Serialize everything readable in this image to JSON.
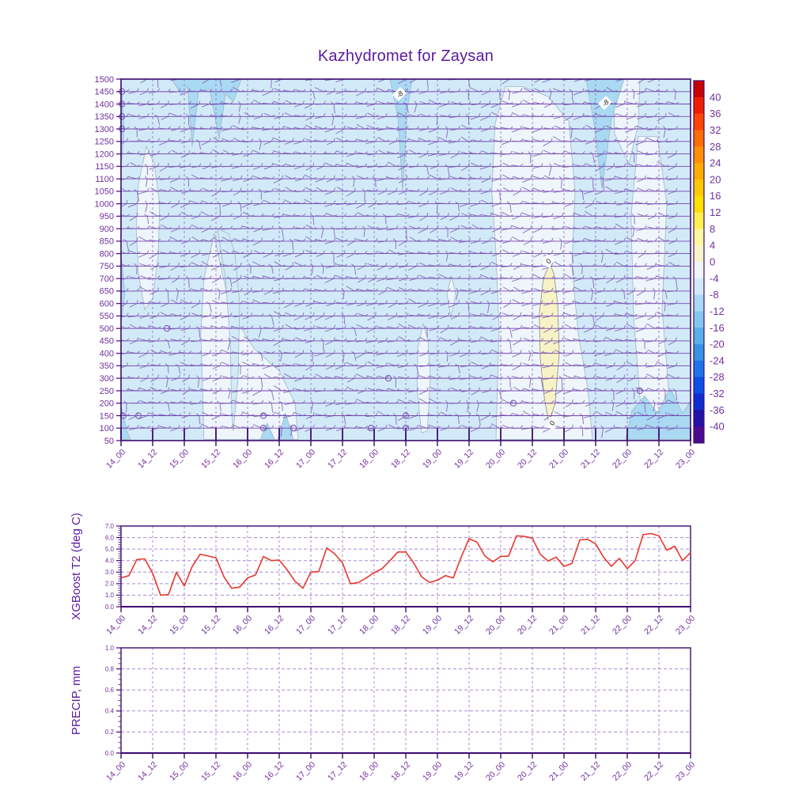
{
  "title": "Kazhydromet for Zaysan",
  "colors": {
    "axis": "#3d0a70",
    "title": "#5a1a9e",
    "label": "#70309f",
    "grid": "#9a76cc",
    "level_line": "#6733a8",
    "barb": "#7c57b4",
    "t2_line": "#e8372c",
    "contour_line": "#9fb6c4",
    "band_base": "#d2eaf8",
    "band_pale": "#eef5fb",
    "band_medium": "#a9d9f3",
    "band_warm": "#f8f3c6"
  },
  "panels": {
    "top": {
      "y_ticks": [
        1500,
        1450,
        1400,
        1350,
        1300,
        1250,
        1200,
        1150,
        1100,
        1050,
        1000,
        950,
        900,
        850,
        800,
        750,
        700,
        650,
        600,
        550,
        500,
        450,
        400,
        350,
        300,
        250,
        200,
        150,
        100,
        50
      ],
      "x_tick_labels": [
        "14_00",
        "14_12",
        "15_00",
        "15_12",
        "16_00",
        "16_12",
        "17_00",
        "17_12",
        "18_00",
        "18_12",
        "19_00",
        "19_12",
        "20_00",
        "20_12",
        "21_00",
        "21_12",
        "22_00",
        "22_12",
        "23_00"
      ],
      "colorbar": {
        "tick_labels": [
          "40",
          "36",
          "32",
          "28",
          "24",
          "20",
          "16",
          "12",
          "8",
          "4",
          "0",
          "-4",
          "-8",
          "-12",
          "-16",
          "-20",
          "-24",
          "-28",
          "-32",
          "-36",
          "-40"
        ],
        "colors": [
          "#c80000",
          "#f01e00",
          "#ff4600",
          "#ff6e00",
          "#ff9000",
          "#ffae00",
          "#ffc800",
          "#ffde00",
          "#fff04e",
          "#fff7a0",
          "#f9f4c8",
          "#eef5fb",
          "#d2eaf8",
          "#a9d9f3",
          "#84c7ee",
          "#58b0e8",
          "#3694e2",
          "#1d74e8",
          "#0c50e6",
          "#0d2dcf",
          "#2310a6",
          "#4b0b8c"
        ]
      },
      "contour_text_labels": [
        {
          "text": "-8",
          "t": 8.8,
          "level": 1440,
          "rot": -45
        },
        {
          "text": "-8",
          "t": 15.3,
          "level": 1405,
          "rot": -45
        },
        {
          "text": "0",
          "t": 13.5,
          "level": 770,
          "rot": -65
        },
        {
          "text": "0",
          "t": 13.62,
          "level": 120,
          "rot": -75
        }
      ],
      "fill_regions": [
        {
          "band": "-4..0",
          "color": "#eef5fb",
          "points": [
            [
              0.8,
              1230
            ],
            [
              0.55,
              1080
            ],
            [
              0.48,
              900
            ],
            [
              0.55,
              720
            ],
            [
              0.75,
              575
            ],
            [
              1.0,
              620
            ],
            [
              1.18,
              800
            ],
            [
              1.22,
              1000
            ],
            [
              1.05,
              1160
            ]
          ]
        },
        {
          "band": "-4..0",
          "color": "#eef5fb",
          "points": [
            [
              2.95,
              880
            ],
            [
              2.62,
              700
            ],
            [
              2.52,
              480
            ],
            [
              2.58,
              240
            ],
            [
              2.62,
              55
            ],
            [
              5.6,
              55
            ],
            [
              5.5,
              200
            ],
            [
              5.0,
              330
            ],
            [
              4.2,
              420
            ],
            [
              3.5,
              560
            ],
            [
              3.2,
              720
            ],
            [
              3.0,
              840
            ]
          ]
        },
        {
          "band": "-8..-4",
          "color": "#d2eaf8",
          "points": [
            [
              3.05,
              900
            ],
            [
              3.3,
              700
            ],
            [
              3.45,
              450
            ],
            [
              3.5,
              150
            ],
            [
              3.55,
              90
            ],
            [
              3.7,
              300
            ],
            [
              3.75,
              600
            ],
            [
              3.6,
              800
            ],
            [
              3.4,
              880
            ]
          ]
        },
        {
          "band": "-4..0",
          "color": "#eef5fb",
          "points": [
            [
              10.45,
              710
            ],
            [
              10.3,
              640
            ],
            [
              10.42,
              545
            ],
            [
              10.58,
              635
            ]
          ]
        },
        {
          "band": "-4..0",
          "color": "#eef5fb",
          "points": [
            [
              9.55,
              520
            ],
            [
              9.38,
              420
            ],
            [
              9.36,
              250
            ],
            [
              9.5,
              80
            ],
            [
              9.68,
              90
            ],
            [
              9.78,
              300
            ],
            [
              9.7,
              450
            ]
          ]
        },
        {
          "band": "-4..0",
          "color": "#eef5fb",
          "points": [
            [
              12.15,
              1470
            ],
            [
              11.82,
              1320
            ],
            [
              11.72,
              1050
            ],
            [
              11.85,
              800
            ],
            [
              11.95,
              500
            ],
            [
              11.85,
              55
            ],
            [
              14.9,
              55
            ],
            [
              14.75,
              260
            ],
            [
              14.45,
              480
            ],
            [
              14.25,
              750
            ],
            [
              14.35,
              1050
            ],
            [
              14.15,
              1330
            ],
            [
              13.5,
              1430
            ],
            [
              12.7,
              1470
            ]
          ]
        },
        {
          "band": "-4..0",
          "color": "#eef5fb",
          "points": [
            [
              16.35,
              1270
            ],
            [
              16.12,
              950
            ],
            [
              16.2,
              550
            ],
            [
              16.45,
              140
            ],
            [
              17.35,
              190
            ],
            [
              17.1,
              580
            ],
            [
              17.25,
              1000
            ],
            [
              16.95,
              1270
            ]
          ]
        },
        {
          "band": "-4..0",
          "color": "#eef5fb",
          "points": [
            [
              15.55,
              1500
            ],
            [
              15.6,
              1280
            ],
            [
              16.05,
              1160
            ],
            [
              16.35,
              1320
            ],
            [
              16.4,
              1500
            ]
          ]
        },
        {
          "band": "-12..-8",
          "color": "#a9d9f3",
          "points": [
            [
              1.6,
              1500
            ],
            [
              1.9,
              1440
            ],
            [
              2.1,
              1470
            ],
            [
              2.25,
              1230
            ],
            [
              2.45,
              1450
            ],
            [
              2.8,
              1460
            ],
            [
              3.1,
              1260
            ],
            [
              3.3,
              1440
            ],
            [
              3.55,
              1410
            ],
            [
              3.8,
              1500
            ]
          ]
        },
        {
          "band": "-12..-8",
          "color": "#a9d9f3",
          "points": [
            [
              8.5,
              1500
            ],
            [
              8.75,
              1350
            ],
            [
              8.9,
              1050
            ],
            [
              9.05,
              1380
            ],
            [
              9.2,
              1500
            ]
          ]
        },
        {
          "band": "-12..-8",
          "color": "#a9d9f3",
          "points": [
            [
              14.7,
              1500
            ],
            [
              14.95,
              1320
            ],
            [
              15.2,
              1060
            ],
            [
              15.5,
              1340
            ],
            [
              15.9,
              1500
            ]
          ]
        },
        {
          "band": "-12..-8",
          "color": "#a9d9f3",
          "points": [
            [
              0,
              1500
            ],
            [
              0.1,
              1300
            ],
            [
              0,
              1150
            ]
          ]
        },
        {
          "band": "-12..-8",
          "color": "#a9d9f3",
          "points": [
            [
              0,
              800
            ],
            [
              0.12,
              640
            ],
            [
              0,
              520
            ]
          ]
        },
        {
          "band": "-12..-8",
          "color": "#a9d9f3",
          "points": [
            [
              0,
              190
            ],
            [
              0.18,
              90
            ],
            [
              0.3,
              55
            ],
            [
              0,
              55
            ]
          ]
        },
        {
          "band": "-12..-8",
          "color": "#a9d9f3",
          "points": [
            [
              4.4,
              55
            ],
            [
              4.62,
              120
            ],
            [
              4.85,
              55
            ]
          ]
        },
        {
          "band": "-12..-8",
          "color": "#a9d9f3",
          "points": [
            [
              4.95,
              55
            ],
            [
              5.2,
              160
            ],
            [
              5.45,
              55
            ]
          ]
        },
        {
          "band": "-12..-8",
          "color": "#a9d9f3",
          "points": [
            [
              15.95,
              55
            ],
            [
              16.15,
              170
            ],
            [
              16.55,
              230
            ],
            [
              16.95,
              160
            ],
            [
              17.35,
              260
            ],
            [
              17.75,
              160
            ],
            [
              18,
              210
            ],
            [
              18,
              55
            ]
          ]
        },
        {
          "band": "0..4",
          "color": "#f8f3c6",
          "stroke": "#8a8a8a",
          "points": [
            [
              13.55,
              760
            ],
            [
              13.35,
              700
            ],
            [
              13.22,
              560
            ],
            [
              13.25,
              380
            ],
            [
              13.38,
              220
            ],
            [
              13.52,
              120
            ],
            [
              13.72,
              200
            ],
            [
              13.85,
              400
            ],
            [
              13.8,
              600
            ],
            [
              13.68,
              720
            ]
          ]
        }
      ],
      "calm_circles": [
        [
          0.07,
          150
        ],
        [
          0.55,
          150
        ],
        [
          1.45,
          500
        ],
        [
          4.5,
          150
        ],
        [
          4.5,
          100
        ],
        [
          5.45,
          100
        ],
        [
          7.9,
          100
        ],
        [
          9.0,
          150
        ],
        [
          9.0,
          100
        ],
        [
          8.45,
          300
        ],
        [
          12.4,
          200
        ],
        [
          16.4,
          250
        ],
        [
          0.03,
          1450
        ],
        [
          0.03,
          1400
        ],
        [
          0.03,
          1350
        ],
        [
          0.03,
          1300
        ]
      ]
    },
    "t2": {
      "ylabel": "XGBoost T2 (deg C)",
      "y_tick_labels": [
        "0.0",
        "1.0",
        "2.0",
        "3.0",
        "4.0",
        "5.0",
        "6.0",
        "7.0"
      ]
    },
    "precip": {
      "ylabel": "PRECIP, mm",
      "y_tick_labels": [
        "0.0",
        "0.2",
        "0.4",
        "0.6",
        "0.8",
        "1.0"
      ]
    }
  },
  "chart_data": [
    {
      "type": "heatmap",
      "title": "Kazhydromet for Zaysan",
      "description": "Time-height cross-section: temperature (deg C) filled contours with wind barbs",
      "x": [
        "14_00",
        "14_12",
        "15_00",
        "15_12",
        "16_00",
        "16_12",
        "17_00",
        "17_12",
        "18_00",
        "18_12",
        "19_00",
        "19_12",
        "20_00",
        "20_12",
        "21_00",
        "21_12",
        "22_00",
        "22_12",
        "23_00"
      ],
      "y_levels": [
        50,
        100,
        150,
        200,
        250,
        300,
        350,
        400,
        450,
        500,
        550,
        600,
        650,
        700,
        750,
        800,
        850,
        900,
        950,
        1000,
        1050,
        1100,
        1150,
        1200,
        1250,
        1300,
        1350,
        1400,
        1450,
        1500
      ],
      "colorbar_ticks": [
        40,
        36,
        32,
        28,
        24,
        20,
        16,
        12,
        8,
        4,
        0,
        -4,
        -8,
        -12,
        -16,
        -20,
        -24,
        -28,
        -32,
        -36,
        -40
      ],
      "field_summary": "Most of the section lies in the -8..-4 C band (light blue). -4..0 C lobes: near 14_12 (levels 550-1200), 15_12-17_00 (below ~900), 18_12 (below ~520 and a lens 550-700), 20_00-21_00 (all levels) and 22_12 (mid levels). -12..-8 C wedges descend from the top near 15_00-15_12, 18_00 and 21_12 (labelled -8). A 0..+4 C warm core (pale yellow, labelled 0) sits near 20_12 between levels ~120-760. Small calm-wind circles appear mostly at the 100-150 levels.",
      "legend_position": "right"
    },
    {
      "type": "line",
      "ylabel": "XGBoost T2 (deg C)",
      "ylim": [
        0.0,
        7.0
      ],
      "grid": true,
      "x_step_hours": 3,
      "times": [
        "14_00",
        "14_03",
        "14_06",
        "14_09",
        "14_12",
        "14_15",
        "14_18",
        "14_21",
        "15_00",
        "15_03",
        "15_06",
        "15_09",
        "15_12",
        "15_15",
        "15_18",
        "15_21",
        "16_00",
        "16_03",
        "16_06",
        "16_09",
        "16_12",
        "16_15",
        "16_18",
        "16_21",
        "17_00",
        "17_03",
        "17_06",
        "17_09",
        "17_12",
        "17_15",
        "17_18",
        "17_21",
        "18_00",
        "18_03",
        "18_06",
        "18_09",
        "18_12",
        "18_15",
        "18_18",
        "18_21",
        "19_00",
        "19_03",
        "19_06",
        "19_09",
        "19_12",
        "19_15",
        "19_18",
        "19_21",
        "20_00",
        "20_03",
        "20_06",
        "20_09",
        "20_12",
        "20_15",
        "20_18",
        "20_21",
        "21_00",
        "21_03",
        "21_06",
        "21_09",
        "21_12",
        "21_15",
        "21_18",
        "21_21",
        "22_00",
        "22_03",
        "22_06",
        "22_09",
        "22_12",
        "22_15",
        "22_18",
        "22_21",
        "23_00"
      ],
      "values": [
        2.5,
        2.7,
        4.1,
        4.15,
        2.9,
        1.0,
        1.05,
        3.0,
        1.8,
        3.5,
        4.55,
        4.4,
        4.25,
        2.6,
        1.6,
        1.7,
        2.5,
        2.75,
        4.35,
        4.0,
        4.05,
        3.2,
        2.2,
        1.6,
        3.0,
        3.05,
        5.1,
        4.6,
        3.8,
        2.0,
        2.1,
        2.5,
        2.95,
        3.3,
        4.0,
        4.75,
        4.75,
        3.8,
        2.6,
        2.1,
        2.3,
        2.7,
        2.5,
        4.3,
        5.9,
        5.6,
        4.4,
        3.9,
        4.35,
        4.4,
        6.15,
        6.1,
        5.95,
        4.55,
        3.95,
        4.3,
        3.5,
        3.75,
        5.8,
        5.85,
        5.45,
        4.3,
        3.5,
        4.2,
        3.3,
        4.0,
        6.25,
        6.35,
        6.15,
        4.9,
        5.25,
        4.0,
        4.7
      ],
      "line_color": "#e8372c"
    },
    {
      "type": "line",
      "ylabel": "PRECIP, mm",
      "ylim": [
        0.0,
        1.0
      ],
      "grid": true,
      "n_points": 73,
      "values_constant": 0,
      "note": "no precipitation plotted over the whole period"
    }
  ]
}
